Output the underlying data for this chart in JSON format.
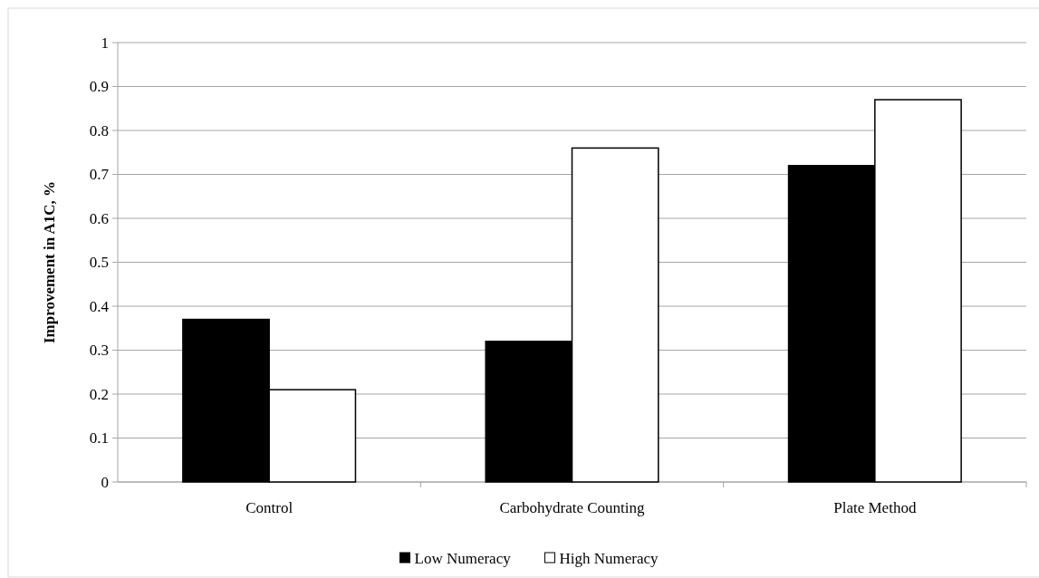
{
  "chart_data": {
    "type": "bar",
    "ylabel": "Improvement in A1C, %",
    "categories": [
      "Control",
      "Carbohydrate Counting",
      "Plate Method"
    ],
    "series": [
      {
        "name": "Low Numeracy",
        "color": "#000000",
        "values": [
          0.37,
          0.32,
          0.72
        ]
      },
      {
        "name": "High Numeracy",
        "color": "#ffffff",
        "values": [
          0.21,
          0.76,
          0.87
        ]
      }
    ],
    "ylim": [
      0,
      1
    ],
    "yticks": [
      0,
      0.1,
      0.2,
      0.3,
      0.4,
      0.5,
      0.6,
      0.7,
      0.8,
      0.9,
      1
    ],
    "grid": "y",
    "legend": "bottom"
  }
}
